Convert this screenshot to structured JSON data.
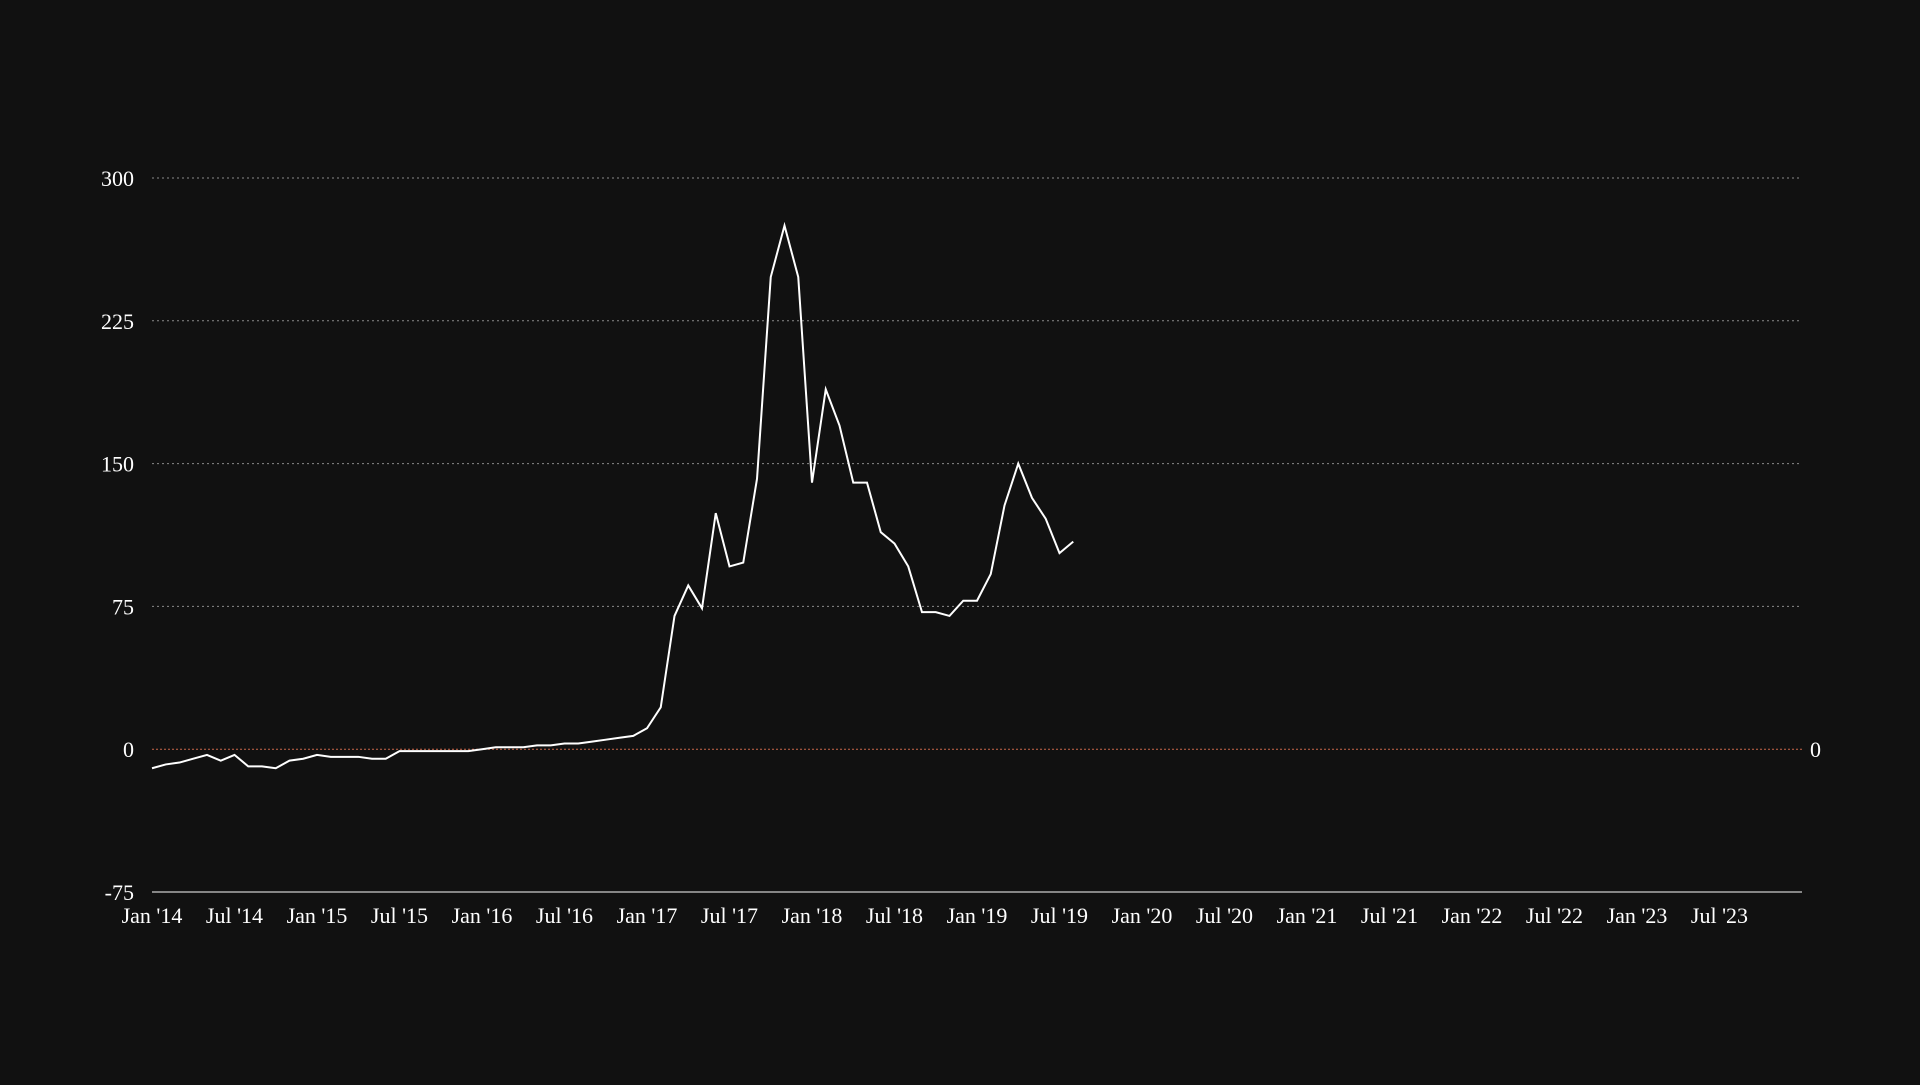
{
  "chart_data": {
    "type": "line",
    "title": "",
    "xlabel": "",
    "ylabel": "",
    "x_domain": [
      "2014-01",
      "2024-01"
    ],
    "ylim": [
      -75,
      300
    ],
    "y_ticks": [
      -75,
      0,
      75,
      150,
      225,
      300
    ],
    "y_tick_labels": [
      "-75",
      "0",
      "75",
      "150",
      "225",
      "300"
    ],
    "x_ticks": [
      "2014-01",
      "2014-07",
      "2015-01",
      "2015-07",
      "2016-01",
      "2016-07",
      "2017-01",
      "2017-07",
      "2018-01",
      "2018-07",
      "2019-01",
      "2019-07",
      "2020-01",
      "2020-07",
      "2021-01",
      "2021-07",
      "2022-01",
      "2022-07",
      "2023-01",
      "2023-07"
    ],
    "x_tick_labels": [
      "Jan '14",
      "Jul '14",
      "Jan '15",
      "Jul '15",
      "Jan '16",
      "Jul '16",
      "Jan '17",
      "Jul '17",
      "Jan '18",
      "Jul '18",
      "Jan '19",
      "Jul '19",
      "Jan '20",
      "Jul '20",
      "Jan '21",
      "Jul '21",
      "Jan '22",
      "Jul '22",
      "Jan '23",
      "Jul '23"
    ],
    "grid": "horizontal dotted",
    "reference_line": {
      "y": 0,
      "label": "0",
      "color": "#c9694a"
    },
    "colors": {
      "background": "#111111",
      "line": "#ffffff",
      "grid": "#8a8a8a",
      "axis": "#cccccc",
      "zero_line": "#c9694a"
    },
    "series": [
      {
        "x": [
          "2014-01",
          "2014-02",
          "2014-03",
          "2014-04",
          "2014-05",
          "2014-06",
          "2014-07",
          "2014-08",
          "2014-09",
          "2014-10",
          "2014-11",
          "2014-12",
          "2015-01",
          "2015-02",
          "2015-03",
          "2015-04",
          "2015-05",
          "2015-06",
          "2015-07",
          "2015-08",
          "2015-09",
          "2015-10",
          "2015-11",
          "2015-12",
          "2016-01",
          "2016-02",
          "2016-03",
          "2016-04",
          "2016-05",
          "2016-06",
          "2016-07",
          "2016-08",
          "2016-09",
          "2016-10",
          "2016-11",
          "2016-12",
          "2017-01",
          "2017-02",
          "2017-03",
          "2017-04",
          "2017-05",
          "2017-06",
          "2017-07",
          "2017-08",
          "2017-09",
          "2017-10",
          "2017-11",
          "2017-12",
          "2018-01",
          "2018-02",
          "2018-03",
          "2018-04",
          "2018-05",
          "2018-06",
          "2018-07",
          "2018-08",
          "2018-09",
          "2018-10",
          "2018-11",
          "2018-12",
          "2019-01",
          "2019-02",
          "2019-03",
          "2019-04",
          "2019-05",
          "2019-06",
          "2019-07",
          "2019-08",
          "2019-09",
          "2019-10"
        ],
        "y": [
          -10,
          -8,
          -7,
          -5,
          -3,
          -6,
          -3,
          -9,
          -9,
          -10,
          -6,
          -5,
          -3,
          -4,
          -4,
          -4,
          -5,
          -5,
          -1,
          -1,
          -1,
          -1,
          -1,
          -1,
          0,
          1,
          1,
          1,
          2,
          2,
          3,
          3,
          4,
          5,
          6,
          7,
          11,
          22,
          70,
          86,
          74,
          124,
          96,
          98,
          142,
          248,
          275,
          248,
          140,
          189,
          170,
          140,
          140,
          114,
          108,
          96,
          72,
          72,
          70,
          78,
          78,
          92,
          128,
          150,
          132,
          121,
          103,
          109,
          null,
          null
        ]
      }
    ]
  }
}
